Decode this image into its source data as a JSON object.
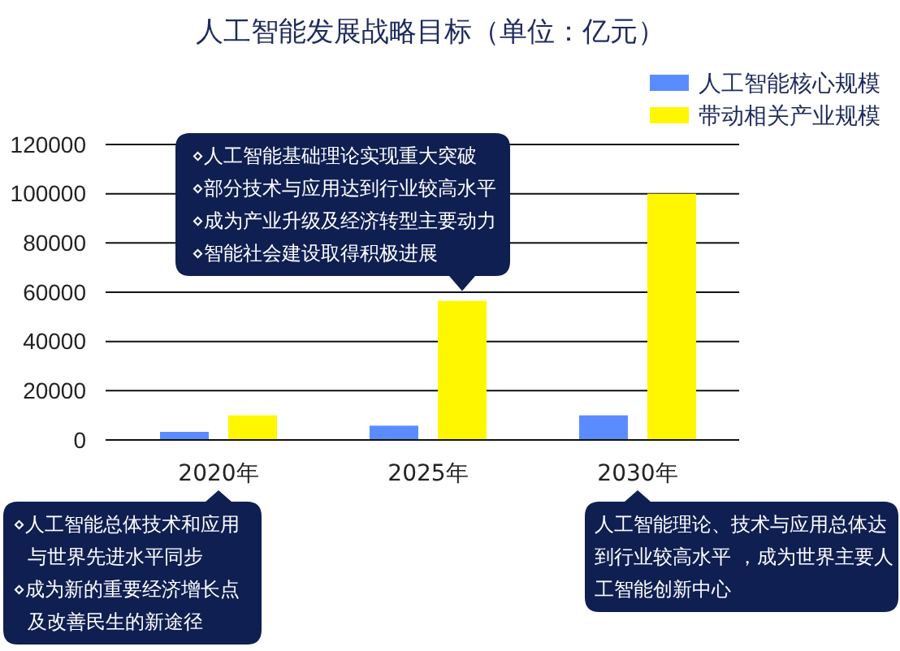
{
  "chart_data": {
    "type": "bar",
    "title": "人工智能发展战略目标（单位：亿元）",
    "categories": [
      "2020年",
      "2025年",
      "2030年"
    ],
    "series": [
      {
        "name": "人工智能核心规模",
        "color": "#5b8cff",
        "values": [
          3300,
          5800,
          10000
        ]
      },
      {
        "name": "带动相关产业规模",
        "color": "#fff700",
        "values": [
          10000,
          56500,
          100000
        ]
      }
    ],
    "ylim": [
      0,
      120000
    ],
    "yticks": [
      0,
      20000,
      40000,
      60000,
      80000,
      100000,
      120000
    ],
    "grid": "y",
    "legend": "top right",
    "annotations": [
      "⋄人工智能基础理论实现重大突破\n⋄部分技术与应用达到行业较高水平\n⋄成为产业升级及经济转型主要动力\n⋄智能社会建设取得积极进展",
      "⋄人工智能总体技术和应用与世界先进水平同步\n⋄成为新的重要经济增长点及改善民生的新途径",
      "人工智能理论、技术与应用总体达到行业较高水平 ，成为世界主要人工智能创新中心"
    ]
  }
}
